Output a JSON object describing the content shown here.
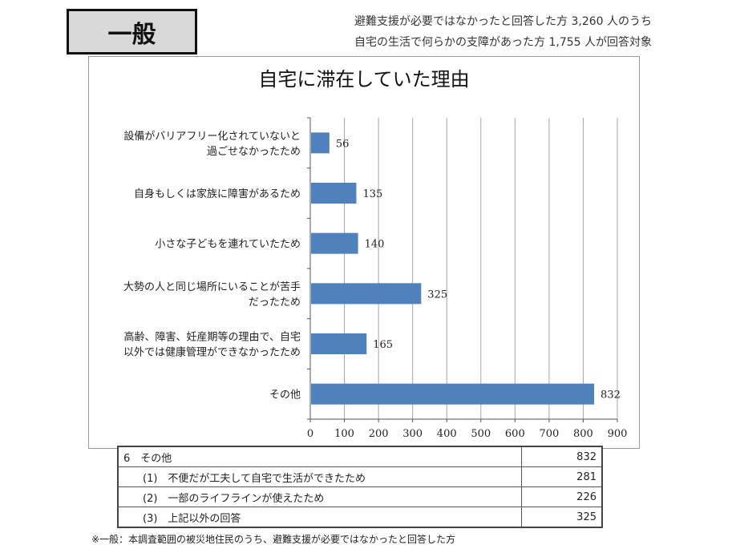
{
  "badge": "一般",
  "header_notes": [
    "避難支援が必要ではなかったと回答した方 3,260 人のうち",
    "自宅の生活で何らかの支障があった方 1,755 人が回答対象"
  ],
  "chart_data": {
    "type": "bar",
    "orientation": "horizontal",
    "title": "自宅に滞在していた理由",
    "categories": [
      [
        "設備がバリアフリー化されていないと",
        "過ごせなかったため"
      ],
      [
        "自身もしくは家族に障害があるため"
      ],
      [
        "小さな子どもを連れていたため"
      ],
      [
        "大勢の人と同じ場所にいることが苦手",
        "だったため"
      ],
      [
        "高齢、障害、妊産期等の理由で、自宅",
        "以外では健康管理ができなかったため"
      ],
      [
        "その他"
      ]
    ],
    "values": [
      56,
      135,
      140,
      325,
      165,
      832
    ],
    "value_labels": [
      "56",
      "135",
      "140",
      "325",
      "165",
      "832"
    ],
    "xlim": [
      0,
      900
    ],
    "xticks": [
      0,
      100,
      200,
      300,
      400,
      500,
      600,
      700,
      800,
      900
    ],
    "xtick_labels": [
      "0",
      "100",
      "200",
      "300",
      "400",
      "500",
      "600",
      "700",
      "800",
      "900"
    ],
    "grid": true,
    "bar_color": "#4f81bd",
    "grid_color": "#a6a6a6"
  },
  "detail_table": {
    "rows": [
      {
        "label": "6　その他",
        "value": "832",
        "sub": false
      },
      {
        "label": "(1)　不便だが工夫して自宅で生活ができたため",
        "value": "281",
        "sub": true
      },
      {
        "label": "(2)　一部のライフラインが使えたため",
        "value": "226",
        "sub": true
      },
      {
        "label": "(3)　上記以外の回答",
        "value": "325",
        "sub": true
      }
    ]
  },
  "footnote": "※一般：本調査範囲の被災地住民のうち、避難支援が必要ではなかったと回答した方"
}
